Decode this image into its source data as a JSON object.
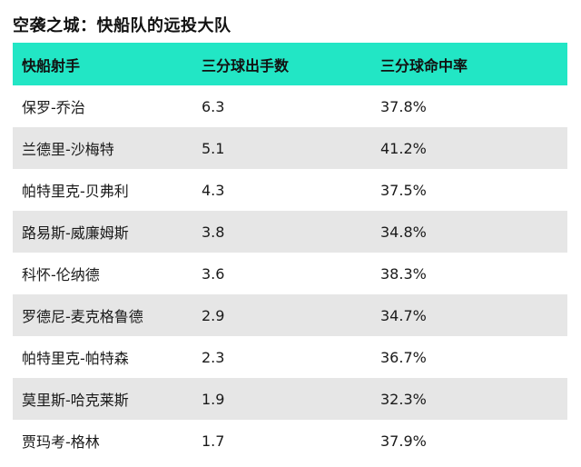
{
  "title": "空袭之城：快船队的远投大队",
  "header": {
    "col1": "快船射手",
    "col2": "三分球出手数",
    "col3": "三分球命中率"
  },
  "header_color": "#22e6c5",
  "rows": [
    {
      "name": "保罗-乔治",
      "attempts": "6.3",
      "pct": "37.8%"
    },
    {
      "name": "兰德里-沙梅特",
      "attempts": "5.1",
      "pct": "41.2%"
    },
    {
      "name": "帕特里克-贝弗利",
      "attempts": "4.3",
      "pct": "37.5%"
    },
    {
      "name": "路易斯-威廉姆斯",
      "attempts": "3.8",
      "pct": "34.8%"
    },
    {
      "name": "科怀-伦纳德",
      "attempts": "3.6",
      "pct": "38.3%"
    },
    {
      "name": "罗德尼-麦克格鲁德",
      "attempts": "2.9",
      "pct": "34.7%"
    },
    {
      "name": "帕特里克-帕特森",
      "attempts": "2.3",
      "pct": "36.7%"
    },
    {
      "name": "莫里斯-哈克莱斯",
      "attempts": "1.9",
      "pct": "32.3%"
    },
    {
      "name": "贾玛考-格林",
      "attempts": "1.7",
      "pct": "37.9%"
    }
  ]
}
